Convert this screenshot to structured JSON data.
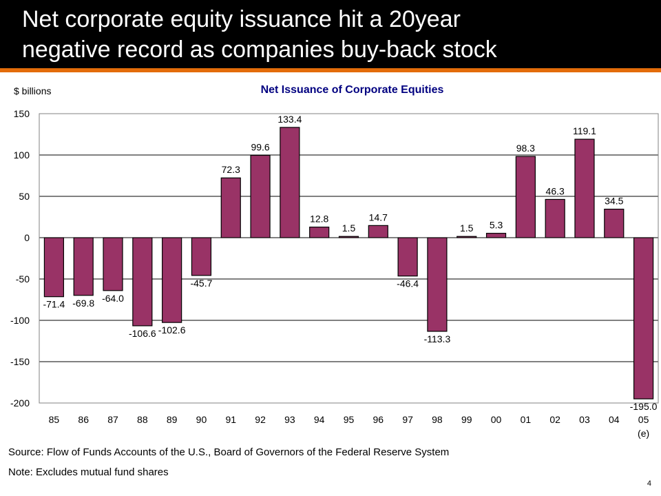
{
  "slide": {
    "title_lines": [
      "Net corporate equity issuance hit a 20year",
      "negative record as companies buy-back stock"
    ],
    "source_note": "Source:  Flow of Funds Accounts of the U.S., Board of Governors of the Federal Reserve System",
    "note": "Note:  Excludes mutual fund shares",
    "slide_number": "4"
  },
  "colors": {
    "title_background": "#000000",
    "title_text": "#ffffff",
    "accent_bar": "#E36C0A",
    "bar_fill": "#993366",
    "chart_title": "#000080",
    "gridline": "#000000"
  },
  "chart_data": {
    "type": "bar",
    "title": "Net Issuance of Corporate Equities",
    "ylabel": "$ billions",
    "xlabel": "",
    "categories": [
      "85",
      "86",
      "87",
      "88",
      "89",
      "90",
      "91",
      "92",
      "93",
      "94",
      "95",
      "96",
      "97",
      "98",
      "99",
      "00",
      "01",
      "02",
      "03",
      "04",
      "05"
    ],
    "category_sublabels": {
      "05": "(e)"
    },
    "values": [
      -71.4,
      -69.8,
      -64.0,
      -106.6,
      -102.6,
      -45.7,
      72.3,
      99.6,
      133.4,
      12.8,
      1.5,
      14.7,
      -46.4,
      -113.3,
      1.5,
      5.3,
      98.3,
      46.3,
      119.1,
      34.5,
      -195.0
    ],
    "data_labels": [
      "-71.4",
      "-69.8",
      "-64.0",
      "-106.6",
      "-102.6",
      "-45.7",
      "72.3",
      "99.6",
      "133.4",
      "12.8",
      "1.5",
      "14.7",
      "-46.4",
      "-113.3",
      "1.5",
      "5.3",
      "98.3",
      "46.3",
      "119.1",
      "34.5",
      "-195.0"
    ],
    "y_ticks": [
      150,
      100,
      50,
      0,
      -50,
      -100,
      -150,
      -200
    ],
    "ylim": [
      -200,
      150
    ],
    "grid": true,
    "legend": "none"
  }
}
